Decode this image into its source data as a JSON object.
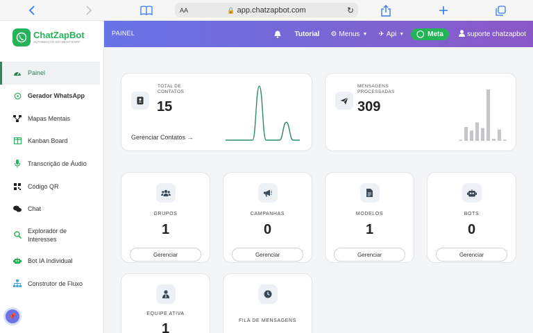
{
  "browser": {
    "url": "app.chatzapbot.com",
    "text_size_label": "AA"
  },
  "sidebar": {
    "logo_name": "ChatZapBot",
    "logo_tagline": "AUTOMAÇÃO DO WHATSAPP",
    "items": [
      {
        "label": "Painel",
        "icon": "dashboard-icon",
        "color": "#2b7f55"
      },
      {
        "label": "Gerador WhatsApp",
        "icon": "whatsapp-icon",
        "color": "#25b35a"
      },
      {
        "label": "Mapas Mentais",
        "icon": "sitemap-icon",
        "color": "#222222"
      },
      {
        "label": "Kanban Board",
        "icon": "columns-icon",
        "color": "#25b35a"
      },
      {
        "label": "Transcrição de Áudio",
        "icon": "microphone-icon",
        "color": "#25b35a"
      },
      {
        "label": "Código QR",
        "icon": "qrcode-icon",
        "color": "#222222"
      },
      {
        "label": "Chat",
        "icon": "comments-icon",
        "color": "#222222"
      },
      {
        "label": "Explorador de Interesses",
        "icon": "search-icon",
        "color": "#25b35a"
      },
      {
        "label": "Bot IA Individual",
        "icon": "robot-icon",
        "color": "#25b35a"
      },
      {
        "label": "Construtor de Fluxo",
        "icon": "flow-icon",
        "color": "#3fa6d8"
      }
    ]
  },
  "topbar": {
    "title": "PAINEL",
    "tutorial": "Tutorial",
    "menus": "Menus",
    "api": "Api",
    "meta": "Meta",
    "user": "suporte chatzapbot"
  },
  "stats": [
    {
      "label": "TOTAL DE CONTATOS",
      "value": "15",
      "link": "Gerenciar Contatos →"
    },
    {
      "label": "MENSAGENS PROCESSADAS",
      "value": "309"
    }
  ],
  "chart_data": [
    {
      "type": "line",
      "series": [
        {
          "values": [
            0,
            0,
            0,
            0,
            0,
            1,
            0,
            0,
            0,
            0.33,
            0,
            0
          ]
        }
      ],
      "color": "#2e8a6a"
    },
    {
      "type": "bar",
      "values": [
        0.02,
        0.27,
        0.2,
        0.36,
        0.25,
        1,
        0.04,
        0.22,
        0.02
      ],
      "color": "#c4c6c9"
    }
  ],
  "cards": [
    {
      "label": "GRUPOS",
      "value": "1",
      "button": "Gerenciar",
      "icon": "users-icon"
    },
    {
      "label": "CAMPANHAS",
      "value": "0",
      "button": "Gerenciar",
      "icon": "bullhorn-icon"
    },
    {
      "label": "MODELOS",
      "value": "1",
      "button": "Gerenciar",
      "icon": "file-icon"
    },
    {
      "label": "BOTS",
      "value": "0",
      "button": "Gerenciar",
      "icon": "robot-icon"
    },
    {
      "label": "EQUIPE ATIVA",
      "value": "1",
      "icon": "user-tie-icon"
    },
    {
      "label": "FILA DE MENSAGENS",
      "icon": "clock-icon"
    }
  ]
}
